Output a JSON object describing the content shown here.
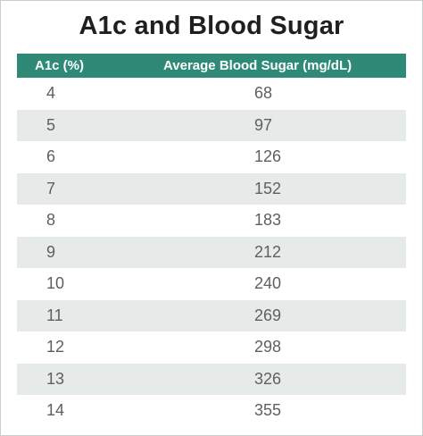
{
  "chart_data": {
    "type": "table",
    "title": "A1c and Blood Sugar",
    "columns": [
      "A1c (%)",
      "Average Blood Sugar (mg/dL)"
    ],
    "rows": [
      [
        "4",
        "68"
      ],
      [
        "5",
        "97"
      ],
      [
        "6",
        "126"
      ],
      [
        "7",
        "152"
      ],
      [
        "8",
        "183"
      ],
      [
        "9",
        "212"
      ],
      [
        "10",
        "240"
      ],
      [
        "11",
        "269"
      ],
      [
        "12",
        "298"
      ],
      [
        "13",
        "326"
      ],
      [
        "14",
        "355"
      ]
    ]
  },
  "colors": {
    "header_bg": "#2e8a76",
    "header_text": "#ffffff",
    "stripe_bg": "#e6ebea",
    "cell_text": "#5f5f5f",
    "title_text": "#1f1f1f"
  }
}
